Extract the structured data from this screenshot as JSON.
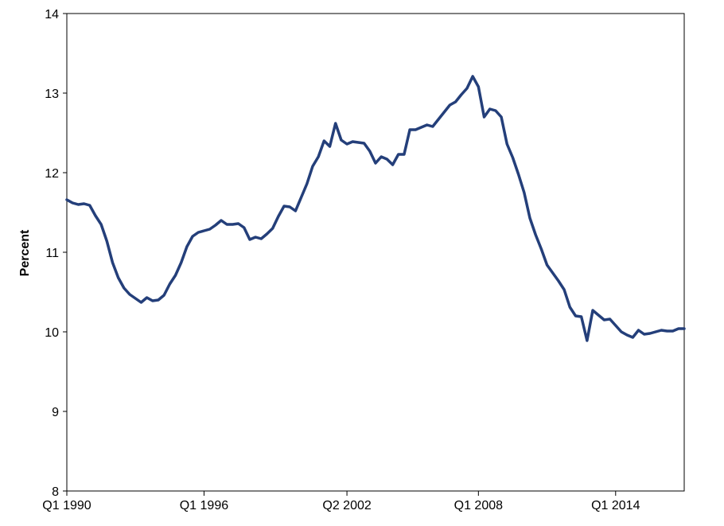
{
  "chart_data": {
    "type": "line",
    "title": "",
    "xlabel": "",
    "ylabel": "Percent",
    "ylim": [
      8,
      14
    ],
    "yticks": [
      8,
      9,
      10,
      11,
      12,
      13,
      14
    ],
    "grid": false,
    "legend": "none",
    "x_tick_labels": [
      {
        "index": 0,
        "label": "Q1 1990"
      },
      {
        "index": 24,
        "label": "Q1 1996"
      },
      {
        "index": 49,
        "label": "Q2 2002"
      },
      {
        "index": 72,
        "label": "Q1 2008"
      },
      {
        "index": 96,
        "label": "Q1 2014"
      }
    ],
    "series": [
      {
        "color": "#243F7A",
        "values": [
          11.66,
          11.62,
          11.6,
          11.61,
          11.59,
          11.46,
          11.35,
          11.14,
          10.87,
          10.68,
          10.55,
          10.47,
          10.42,
          10.37,
          10.43,
          10.39,
          10.4,
          10.46,
          10.6,
          10.71,
          10.87,
          11.07,
          11.2,
          11.25,
          11.27,
          11.29,
          11.34,
          11.4,
          11.35,
          11.35,
          11.36,
          11.31,
          11.16,
          11.19,
          11.17,
          11.23,
          11.3,
          11.45,
          11.58,
          11.57,
          11.52,
          11.69,
          11.86,
          12.08,
          12.2,
          12.4,
          12.33,
          12.62,
          12.41,
          12.36,
          12.39,
          12.38,
          12.37,
          12.27,
          12.12,
          12.2,
          12.17,
          12.1,
          12.23,
          12.23,
          12.54,
          12.54,
          12.57,
          12.6,
          12.58,
          12.67,
          12.76,
          12.85,
          12.89,
          12.98,
          13.06,
          13.21,
          13.08,
          12.7,
          12.8,
          12.78,
          12.7,
          12.36,
          12.19,
          11.98,
          11.75,
          11.43,
          11.22,
          11.04,
          10.84,
          10.74,
          10.64,
          10.53,
          10.31,
          10.2,
          10.19,
          9.89,
          10.27,
          10.21,
          10.15,
          10.16,
          10.08,
          10.0,
          9.96,
          9.93,
          10.02,
          9.97,
          9.98,
          10.0,
          10.02,
          10.01,
          10.01,
          10.04,
          10.04
        ]
      }
    ]
  }
}
